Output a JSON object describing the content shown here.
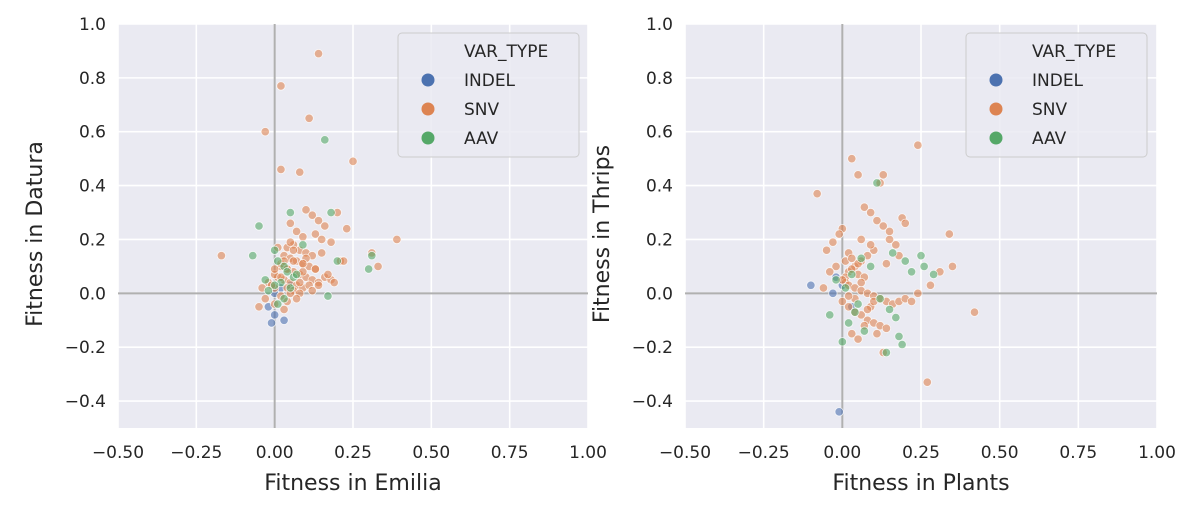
{
  "chart_data": [
    {
      "type": "scatter",
      "title": "",
      "xlabel": "Fitness in Emilia",
      "ylabel": "Fitness in Datura",
      "xlim": [
        -0.5,
        1.0
      ],
      "ylim": [
        -0.5,
        1.0
      ],
      "xticks": [
        "−0.50",
        "−0.25",
        "0.00",
        "0.25",
        "0.50",
        "0.75",
        "1.00"
      ],
      "yticks": [
        "−0.4",
        "−0.2",
        "0.0",
        "0.2",
        "0.4",
        "0.6",
        "0.8",
        "1.0"
      ],
      "grid": true,
      "legend": {
        "title": "VAR_TYPE",
        "placement": "top-right",
        "entries": [
          {
            "label": "INDEL",
            "color": "#4c72b0"
          },
          {
            "label": "SNV",
            "color": "#dd8452"
          },
          {
            "label": "AAV",
            "color": "#55a868"
          }
        ]
      },
      "series": [
        {
          "name": "INDEL",
          "color": "#4c72b0",
          "x": [
            -0.01,
            0.0,
            0.03,
            -0.02,
            0.02,
            0.05,
            0.0
          ],
          "y": [
            -0.11,
            -0.08,
            -0.1,
            -0.05,
            0.02,
            0.03,
            0.0
          ]
        },
        {
          "name": "SNV",
          "color": "#dd8452",
          "x": [
            0.14,
            0.02,
            0.11,
            -0.03,
            0.25,
            0.02,
            0.08,
            -0.17,
            0.39,
            0.31,
            0.33,
            0.2,
            0.23,
            0.1,
            0.12,
            0.14,
            0.16,
            0.05,
            0.07,
            0.09,
            0.13,
            0.15,
            0.18,
            0.06,
            0.04,
            0.08,
            0.1,
            0.12,
            0.03,
            0.05,
            0.07,
            0.09,
            0.11,
            0.13,
            0.02,
            0.04,
            0.06,
            0.08,
            0.1,
            0.12,
            0.14,
            0.16,
            0.18,
            0.01,
            0.03,
            0.05,
            0.07,
            0.09,
            0.0,
            0.02,
            0.04,
            0.06,
            0.08,
            -0.02,
            0.0,
            0.02,
            0.04,
            -0.05,
            -0.03,
            0.0,
            0.03,
            0.06,
            0.09,
            0.11,
            0.15,
            0.17,
            0.21,
            0.05,
            0.07,
            0.02,
            0.04,
            0.08,
            0.1,
            0.0,
            0.06,
            0.12,
            0.14,
            0.01,
            0.03,
            0.05,
            -0.01,
            -0.04,
            0.09,
            0.13,
            0.19,
            0.22
          ],
          "y": [
            0.89,
            0.77,
            0.65,
            0.6,
            0.49,
            0.46,
            0.45,
            0.14,
            0.2,
            0.15,
            0.1,
            0.3,
            0.24,
            0.31,
            0.29,
            0.27,
            0.25,
            0.26,
            0.23,
            0.21,
            0.22,
            0.2,
            0.19,
            0.18,
            0.17,
            0.16,
            0.15,
            0.14,
            0.14,
            0.13,
            0.12,
            0.11,
            0.1,
            0.09,
            0.1,
            0.09,
            0.08,
            0.07,
            0.06,
            0.05,
            0.04,
            0.06,
            0.05,
            0.06,
            0.05,
            0.04,
            0.03,
            0.02,
            0.07,
            0.06,
            0.02,
            0.01,
            0.0,
            0.04,
            0.02,
            -0.01,
            -0.03,
            -0.05,
            -0.02,
            -0.04,
            -0.06,
            0.12,
            0.08,
            0.03,
            0.15,
            0.07,
            0.12,
            0.0,
            -0.02,
            0.11,
            0.09,
            0.04,
            0.13,
            0.09,
            0.16,
            0.01,
            0.03,
            0.17,
            0.12,
            0.19,
            0.03,
            0.02,
            0.11,
            0.09,
            0.04,
            0.12
          ]
        },
        {
          "name": "AAV",
          "color": "#55a868",
          "x": [
            0.16,
            0.0,
            0.05,
            -0.05,
            -0.07,
            0.01,
            0.03,
            0.04,
            0.06,
            0.02,
            0.0,
            -0.02,
            0.18,
            0.3,
            0.31,
            0.17,
            0.2,
            0.01,
            0.03,
            0.05,
            -0.03,
            0.07,
            0.09
          ],
          "y": [
            0.57,
            0.16,
            0.3,
            0.25,
            0.14,
            0.12,
            0.1,
            0.08,
            0.06,
            0.04,
            0.03,
            0.01,
            0.3,
            0.09,
            0.14,
            -0.01,
            0.12,
            -0.04,
            -0.02,
            0.02,
            0.05,
            0.07,
            0.18
          ]
        }
      ]
    },
    {
      "type": "scatter",
      "title": "",
      "xlabel": "Fitness in Plants",
      "ylabel": "Fitness in Thrips",
      "xlim": [
        -0.5,
        1.0
      ],
      "ylim": [
        -0.5,
        1.0
      ],
      "xticks": [
        "−0.50",
        "−0.25",
        "0.00",
        "0.25",
        "0.50",
        "0.75",
        "1.00"
      ],
      "yticks": [
        "−0.4",
        "−0.2",
        "0.0",
        "0.2",
        "0.4",
        "0.6",
        "0.8",
        "1.0"
      ],
      "grid": true,
      "legend": {
        "title": "VAR_TYPE",
        "placement": "top-right",
        "entries": [
          {
            "label": "INDEL",
            "color": "#4c72b0"
          },
          {
            "label": "SNV",
            "color": "#dd8452"
          },
          {
            "label": "AAV",
            "color": "#55a868"
          }
        ]
      },
      "series": [
        {
          "name": "INDEL",
          "color": "#4c72b0",
          "x": [
            -0.1,
            -0.01,
            0.0,
            -0.02,
            0.03,
            -0.03
          ],
          "y": [
            0.03,
            -0.44,
            0.03,
            0.06,
            -0.05,
            0.0
          ]
        },
        {
          "name": "SNV",
          "color": "#dd8452",
          "x": [
            0.24,
            0.03,
            0.05,
            0.13,
            0.12,
            -0.08,
            0.27,
            0.42,
            0.34,
            0.35,
            0.19,
            0.2,
            0.15,
            0.17,
            0.1,
            0.08,
            0.06,
            0.04,
            0.02,
            0.01,
            0.0,
            -0.01,
            -0.03,
            -0.05,
            0.07,
            0.09,
            0.11,
            0.13,
            0.15,
            0.03,
            0.05,
            0.01,
            0.02,
            0.04,
            0.06,
            0.08,
            0.1,
            0.12,
            0.14,
            0.16,
            0.18,
            0.2,
            0.22,
            0.24,
            0.28,
            0.31,
            0.0,
            0.02,
            0.04,
            0.06,
            0.08,
            0.1,
            0.12,
            0.14,
            0.03,
            0.05,
            0.07,
            0.09,
            0.01,
            0.02,
            -0.02,
            -0.04,
            0.06,
            0.11,
            0.13,
            -0.06,
            0.0,
            0.03,
            0.05,
            0.07,
            0.09,
            0.04,
            0.08,
            0.02,
            0.06,
            0.1,
            0.14,
            0.18
          ],
          "y": [
            0.55,
            0.5,
            0.44,
            0.44,
            0.41,
            0.37,
            -0.33,
            -0.07,
            0.22,
            0.1,
            0.28,
            0.26,
            0.2,
            0.18,
            0.16,
            0.14,
            0.12,
            0.1,
            0.08,
            0.06,
            0.24,
            0.22,
            0.19,
            0.16,
            0.32,
            0.3,
            0.27,
            0.25,
            0.23,
            0.09,
            0.07,
            0.04,
            0.03,
            0.02,
            0.01,
            0.0,
            -0.01,
            -0.02,
            -0.03,
            -0.04,
            -0.03,
            -0.02,
            -0.03,
            0.0,
            0.03,
            0.08,
            -0.03,
            -0.05,
            -0.07,
            -0.08,
            -0.1,
            -0.11,
            -0.12,
            -0.13,
            -0.15,
            -0.17,
            -0.12,
            -0.05,
            0.12,
            0.15,
            0.1,
            0.08,
            0.2,
            -0.15,
            -0.22,
            0.02,
            0.05,
            0.13,
            0.11,
            0.06,
            0.18,
            -0.02,
            -0.06,
            -0.01,
            0.04,
            -0.03,
            0.11,
            0.14
          ]
        },
        {
          "name": "AAV",
          "color": "#55a868",
          "x": [
            0.11,
            0.2,
            0.16,
            0.25,
            0.29,
            0.18,
            0.14,
            0.15,
            0.17,
            0.19,
            -0.04,
            0.0,
            0.02,
            0.05,
            0.07,
            -0.02,
            0.01,
            0.03,
            0.09,
            0.12,
            0.06,
            0.04,
            0.22,
            0.26
          ],
          "y": [
            0.41,
            0.12,
            0.15,
            0.14,
            0.07,
            -0.16,
            -0.22,
            -0.06,
            -0.09,
            -0.19,
            -0.08,
            -0.18,
            -0.11,
            -0.04,
            -0.14,
            0.05,
            0.02,
            0.07,
            0.1,
            -0.02,
            0.13,
            -0.07,
            0.08,
            0.1
          ]
        }
      ]
    }
  ]
}
